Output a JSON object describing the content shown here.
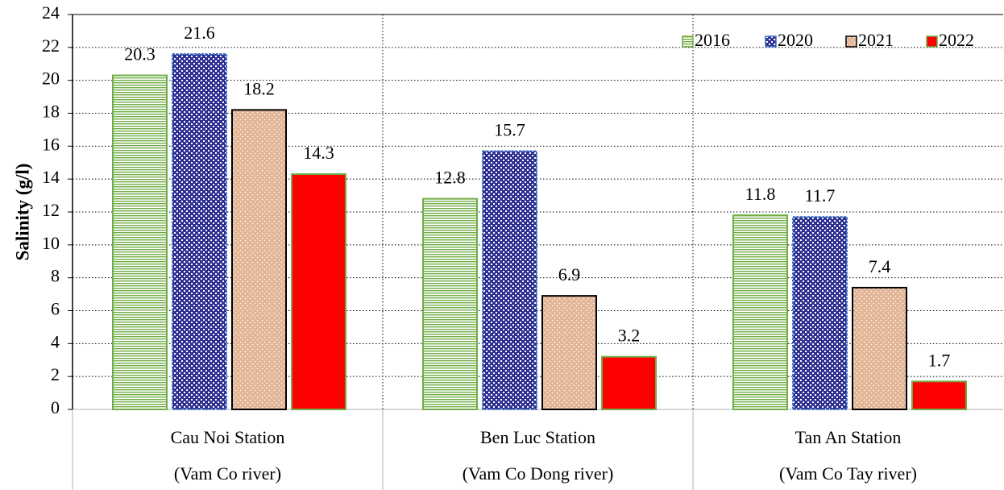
{
  "chart_data": {
    "type": "bar",
    "y_label": "Salinity (g/l)",
    "categories": [
      [
        "Cau Noi Station",
        "(Vam Co river)"
      ],
      [
        "Ben Luc Station",
        "(Vam Co Dong river)"
      ],
      [
        "Tan An Station",
        "(Vam Co Tay river)"
      ]
    ],
    "series": [
      {
        "name": "2016",
        "color": "#70ad47",
        "edgecolor": "#70ad47",
        "values": [
          20.3,
          12.8,
          11.8
        ]
      },
      {
        "name": "2020",
        "color": "#2e3192",
        "edgecolor": "#4472c4",
        "values": [
          21.6,
          15.7,
          11.7
        ]
      },
      {
        "name": "2021",
        "color": "#e3b596",
        "edgecolor": "#000000",
        "values": [
          18.2,
          6.9,
          7.4
        ]
      },
      {
        "name": "2022",
        "color": "#ff0000",
        "edgecolor": "#70ad47",
        "values": [
          14.3,
          3.2,
          1.7
        ]
      }
    ],
    "ylim": [
      0,
      24
    ],
    "yticks": [
      0,
      2,
      4,
      6,
      8,
      10,
      12,
      14,
      16,
      18,
      20,
      22,
      24
    ],
    "grid": true,
    "legend": "upper right"
  }
}
